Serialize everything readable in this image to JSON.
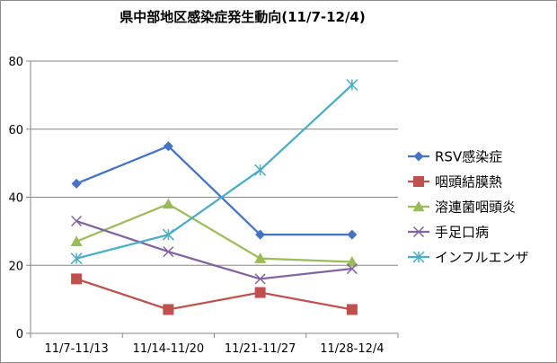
{
  "chart_data": {
    "type": "line",
    "title": "県中部地区感染症発生動向(11/7-12/4)",
    "categories": [
      "11/7-11/13",
      "11/14-11/20",
      "11/21-11/27",
      "11/28-12/4"
    ],
    "ylim": [
      0,
      80
    ],
    "yticks": [
      0,
      20,
      40,
      60,
      80
    ],
    "grid": "horizontal",
    "legend_position": "right",
    "series": [
      {
        "name": "RSV感染症",
        "values": [
          44,
          55,
          29,
          29
        ],
        "color": "#4472c4",
        "marker": "diamond"
      },
      {
        "name": "咽頭結膜熱",
        "values": [
          16,
          7,
          12,
          7
        ],
        "color": "#c0504d",
        "marker": "square"
      },
      {
        "name": "溶連菌咽頭炎",
        "values": [
          27,
          38,
          22,
          21
        ],
        "color": "#9bbb59",
        "marker": "triangle"
      },
      {
        "name": "手足口病",
        "values": [
          33,
          24,
          16,
          19
        ],
        "color": "#8064a2",
        "marker": "x"
      },
      {
        "name": "インフルエンザ",
        "values": [
          22,
          29,
          48,
          73
        ],
        "color": "#4bacc6",
        "marker": "star"
      }
    ]
  }
}
